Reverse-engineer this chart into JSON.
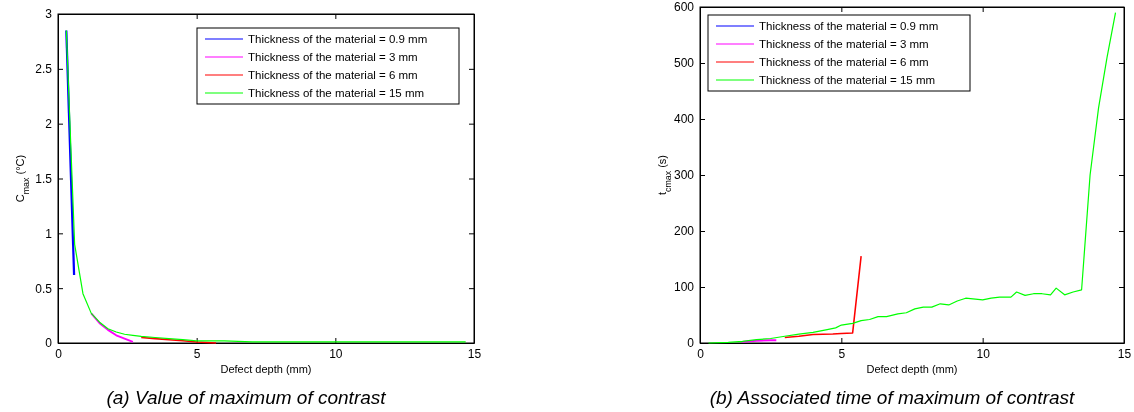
{
  "chart_data": [
    {
      "type": "line",
      "title": "(a) Value of maximum of contrast",
      "xlabel": "Defect depth (mm)",
      "ylabel": "C$_{max}$ (°C)",
      "xlim": [
        0,
        15
      ],
      "xticks": [
        0,
        5,
        10,
        15
      ],
      "ylim": [
        0,
        3
      ],
      "yticks": [
        0,
        0.5,
        1,
        1.5,
        2,
        2.5,
        3
      ],
      "legend": "top right",
      "grid": false,
      "series": [
        {
          "name": "Thickness of the material = 0.9 mm",
          "color": "#0000ff",
          "x": [
            0.3,
            0.58
          ],
          "values": [
            2.85,
            0.62
          ]
        },
        {
          "name": "Thickness of the material = 3 mm",
          "color": "#ff00ff",
          "x": [
            1.2,
            1.5,
            1.8,
            2.1,
            2.4,
            2.7
          ],
          "values": [
            0.27,
            0.18,
            0.12,
            0.07,
            0.04,
            0.01
          ]
        },
        {
          "name": "Thickness of the material = 6 mm",
          "color": "#ff0000",
          "x": [
            3,
            3.5,
            4,
            4.5,
            5,
            5.7
          ],
          "values": [
            0.05,
            0.04,
            0.03,
            0.02,
            0.01,
            0.0
          ]
        },
        {
          "name": "Thickness of the material = 15 mm",
          "color": "#00ff00",
          "x": [
            0.3,
            0.6,
            0.9,
            1.2,
            1.5,
            1.8,
            2.1,
            2.4,
            2.7,
            3,
            3.5,
            4,
            4.5,
            5,
            6,
            7,
            8,
            10,
            12,
            14.7
          ],
          "values": [
            2.85,
            0.9,
            0.45,
            0.27,
            0.19,
            0.13,
            0.1,
            0.08,
            0.07,
            0.06,
            0.05,
            0.04,
            0.03,
            0.02,
            0.02,
            0.01,
            0.01,
            0.01,
            0.01,
            0.01
          ]
        }
      ]
    },
    {
      "type": "line",
      "title": "(b) Associated time of maximum of contrast",
      "xlabel": "Defect depth (mm)",
      "ylabel": "t$_{cmax}$ (s)",
      "xlim": [
        0,
        15
      ],
      "xticks": [
        0,
        5,
        10,
        15
      ],
      "ylim": [
        0,
        600
      ],
      "yticks": [
        0,
        100,
        200,
        300,
        400,
        500,
        600
      ],
      "legend": "top left",
      "grid": false,
      "series": [
        {
          "name": "Thickness of the material = 0.9 mm",
          "color": "#0000ff"
        },
        {
          "name": "Thickness of the material = 3 mm",
          "color": "#ff00ff",
          "x": [
            1.5,
            2,
            2.5,
            2.7
          ],
          "values": [
            2,
            4,
            5,
            5
          ]
        },
        {
          "name": "Thickness of the material = 6 mm",
          "color": "#ff0000",
          "x": [
            3,
            3.5,
            4,
            4.7,
            5,
            5.4,
            5.7
          ],
          "values": [
            10,
            12,
            15,
            16,
            17,
            18,
            155
          ]
        },
        {
          "name": "Thickness of the material = 15 mm",
          "color": "#00ff00",
          "x": [
            0.3,
            1,
            1.5,
            2,
            2.5,
            3,
            3.5,
            4,
            4.5,
            4.8,
            5,
            5.4,
            5.7,
            6,
            6.3,
            6.6,
            7,
            7.3,
            7.6,
            7.9,
            8.2,
            8.5,
            8.8,
            9.1,
            9.4,
            10,
            10.3,
            10.6,
            11,
            11.2,
            11.5,
            11.8,
            12.1,
            12.4,
            12.6,
            12.9,
            13.2,
            13.5,
            13.8,
            14.1,
            14.4,
            14.7
          ],
          "values": [
            0,
            1,
            3,
            6,
            8,
            12,
            16,
            19,
            24,
            27,
            32,
            35,
            40,
            42,
            47,
            47,
            52,
            54,
            61,
            64,
            64,
            70,
            68,
            75,
            80,
            77,
            80,
            82,
            82,
            91,
            85,
            88,
            88,
            86,
            98,
            86,
            91,
            95,
            300,
            420,
            510,
            590
          ]
        }
      ]
    }
  ]
}
